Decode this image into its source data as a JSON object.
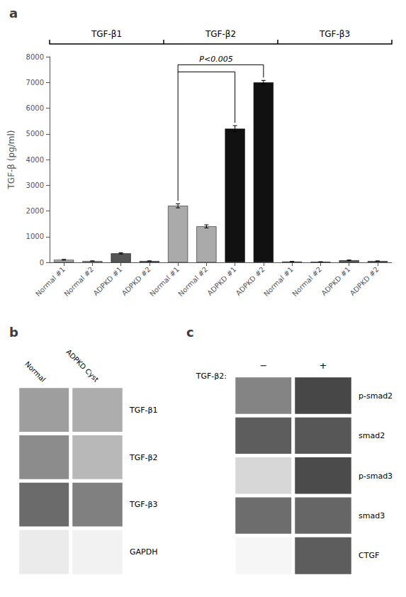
{
  "chart_data": [
    {
      "type": "bar",
      "title": "a",
      "ylabel": "TGF-β (pg/ml)",
      "categories": [
        "TGF-β1",
        "TGF-β2",
        "TGF-β3"
      ],
      "series": [
        {
          "name": "Normal #1",
          "color": "#aaaaaa",
          "values": [
            100,
            2200,
            30
          ],
          "errors": [
            15,
            80,
            5
          ]
        },
        {
          "name": "Normal #2",
          "color": "#aaaaaa",
          "values": [
            50,
            1400,
            20
          ],
          "errors": [
            8,
            60,
            4
          ]
        },
        {
          "name": "ADPKD #1",
          "colors": [
            "#555555",
            "#111111",
            "#555555"
          ],
          "values": [
            350,
            5200,
            80
          ],
          "errors": [
            25,
            120,
            10
          ]
        },
        {
          "name": "ADPKD #2",
          "colors": [
            "#555555",
            "#111111",
            "#555555"
          ],
          "values": [
            50,
            7000,
            50
          ],
          "errors": [
            8,
            80,
            6
          ]
        }
      ],
      "ylim": [
        0,
        8000
      ],
      "yticks": [
        0,
        1000,
        2000,
        3000,
        4000,
        5000,
        6000,
        7000,
        8000
      ],
      "grid": false,
      "annotation": {
        "text": "P<0.005",
        "group": "TGF-β2",
        "from": "Normal #1",
        "to": [
          "ADPKD #2",
          "ADPKD #1"
        ]
      }
    },
    {
      "type": "heatmap",
      "title": "b",
      "categories": [
        "Normal",
        "ADPKD Cyst"
      ],
      "rows": [
        "TGF-β1",
        "TGF-β2",
        "TGF-β3",
        "GAPDH"
      ],
      "cells": [
        [
          0.62,
          0.68
        ],
        [
          0.55,
          0.72
        ],
        [
          0.42,
          0.5
        ],
        [
          0.92,
          0.95
        ]
      ]
    },
    {
      "type": "heatmap",
      "title": "c",
      "xlabel": "TGF-β2:",
      "categories": [
        "−",
        "+"
      ],
      "rows": [
        "p-smad2",
        "smad2",
        "p-smad3",
        "smad3",
        "CTGF"
      ],
      "cells": [
        [
          0.55,
          0.82
        ],
        [
          0.72,
          0.75
        ],
        [
          0.18,
          0.8
        ],
        [
          0.65,
          0.68
        ],
        [
          0.04,
          0.72
        ]
      ]
    }
  ]
}
